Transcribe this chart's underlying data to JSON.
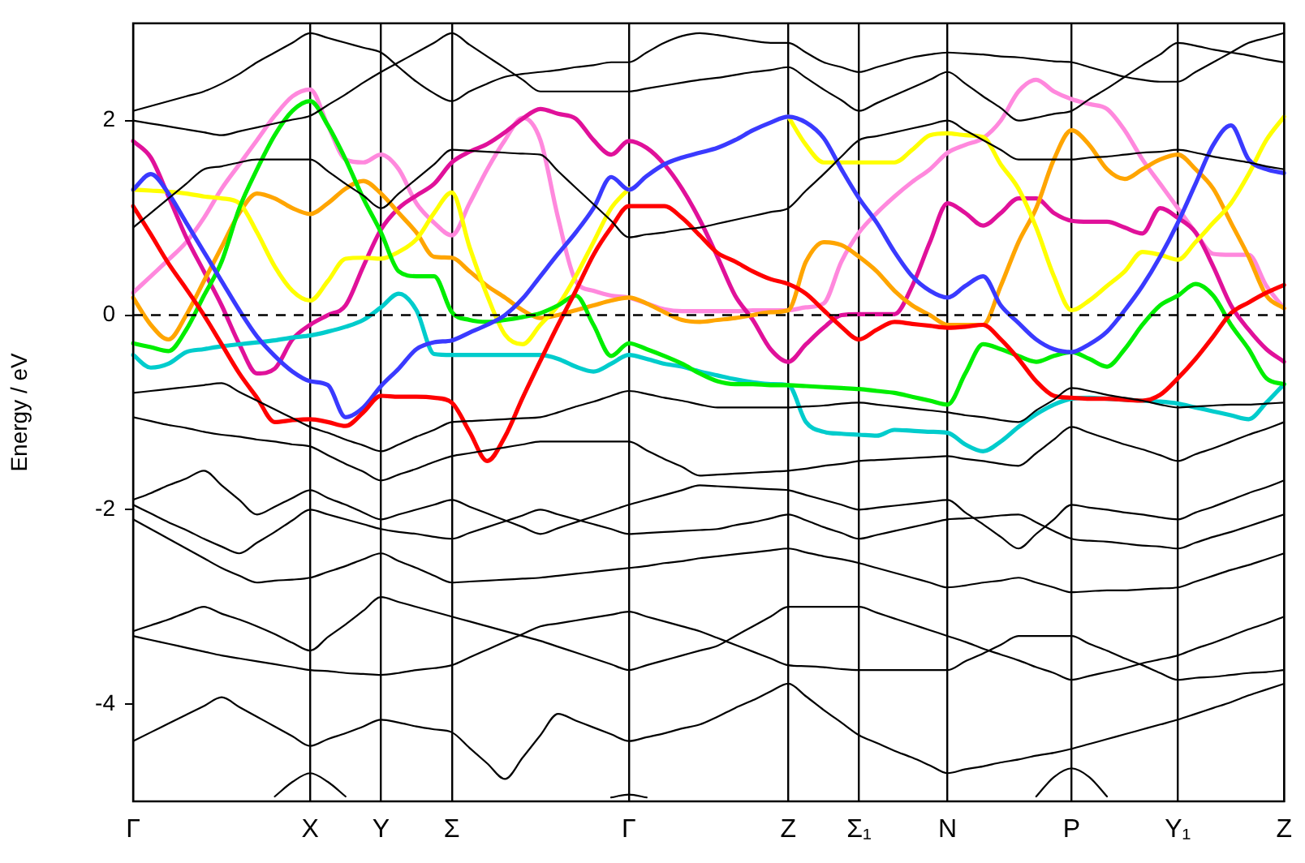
{
  "chart_data": {
    "type": "line",
    "ylabel": "Energy / eV",
    "ylim": [
      -5,
      3
    ],
    "yticks": [
      -4,
      -2,
      0,
      2
    ],
    "categories": [
      "Γ",
      null,
      null,
      null,
      null,
      null,
      null,
      null,
      null,
      null,
      "X",
      null,
      null,
      null,
      "Y",
      null,
      null,
      null,
      "Σ",
      null,
      null,
      null,
      null,
      null,
      null,
      null,
      null,
      null,
      "Γ",
      null,
      null,
      null,
      null,
      null,
      null,
      null,
      null,
      "Z",
      null,
      null,
      null,
      "Σ₁",
      null,
      null,
      null,
      null,
      "N",
      null,
      null,
      null,
      null,
      null,
      null,
      "P",
      null,
      null,
      null,
      null,
      null,
      "Y₁",
      null,
      null,
      null,
      null,
      null,
      "Z"
    ],
    "grid": "x",
    "legend": false,
    "marker": "none",
    "line_style": "solid",
    "ref_lines": [
      {
        "axis": "y",
        "value": 0,
        "color": "#000000",
        "line_style": "dashed"
      }
    ],
    "series": [
      {
        "color": "#000000",
        "values": [
          2.1,
          2.15,
          2.2,
          2.25,
          2.3,
          2.38,
          2.48,
          2.6,
          2.7,
          2.8,
          2.9,
          2.85,
          2.8,
          2.75,
          2.7,
          2.55,
          2.4,
          2.28,
          2.2,
          2.3,
          2.38,
          2.45,
          2.48,
          2.5,
          2.52,
          2.55,
          2.57,
          2.6,
          2.6,
          2.7,
          2.8,
          2.87,
          2.9,
          2.88,
          2.85,
          2.82,
          2.8,
          2.8,
          2.7,
          2.6,
          2.55,
          2.5,
          2.55,
          2.6,
          2.65,
          2.68,
          2.7,
          2.69,
          2.68,
          2.66,
          2.65,
          2.63,
          2.61,
          2.6,
          2.55,
          2.5,
          2.45,
          2.42,
          2.4,
          2.4,
          2.5,
          2.6,
          2.7,
          2.8,
          2.85,
          2.9
        ]
      },
      {
        "color": "#000000",
        "values": [
          2.0,
          1.97,
          1.94,
          1.91,
          1.88,
          1.85,
          1.89,
          1.93,
          1.97,
          2.01,
          2.05,
          2.16,
          2.27,
          2.39,
          2.5,
          2.6,
          2.7,
          2.8,
          2.9,
          2.78,
          2.66,
          2.54,
          2.42,
          2.3,
          2.3,
          2.3,
          2.3,
          2.3,
          2.3,
          2.33,
          2.36,
          2.39,
          2.42,
          2.44,
          2.47,
          2.5,
          2.52,
          2.55,
          2.44,
          2.32,
          2.21,
          2.1,
          2.18,
          2.26,
          2.34,
          2.42,
          2.5,
          2.38,
          2.25,
          2.13,
          2.0,
          2.03,
          2.07,
          2.1,
          2.22,
          2.33,
          2.45,
          2.57,
          2.68,
          2.8,
          2.77,
          2.73,
          2.7,
          2.67,
          2.63,
          2.6
        ]
      },
      {
        "color": "#000000",
        "values": [
          0.9,
          1.05,
          1.2,
          1.35,
          1.5,
          1.53,
          1.57,
          1.6,
          1.6,
          1.6,
          1.6,
          1.48,
          1.35,
          1.23,
          1.1,
          1.25,
          1.4,
          1.55,
          1.7,
          1.69,
          1.68,
          1.67,
          1.66,
          1.65,
          1.48,
          1.31,
          1.14,
          0.97,
          0.8,
          0.83,
          0.85,
          0.88,
          0.9,
          0.94,
          0.98,
          1.02,
          1.06,
          1.1,
          1.28,
          1.45,
          1.63,
          1.8,
          1.84,
          1.88,
          1.92,
          1.96,
          2.0,
          1.9,
          1.8,
          1.7,
          1.6,
          1.6,
          1.6,
          1.6,
          1.62,
          1.63,
          1.65,
          1.67,
          1.68,
          1.7,
          1.67,
          1.63,
          1.6,
          1.57,
          1.53,
          1.5
        ]
      },
      {
        "color": "#000000",
        "values": [
          -0.8,
          -0.78,
          -0.76,
          -0.74,
          -0.72,
          -0.7,
          -0.79,
          -0.88,
          -0.97,
          -1.06,
          -1.15,
          -1.21,
          -1.28,
          -1.34,
          -1.4,
          -1.33,
          -1.25,
          -1.18,
          -1.1,
          -1.09,
          -1.08,
          -1.07,
          -1.06,
          -1.05,
          -1.0,
          -0.94,
          -0.89,
          -0.83,
          -0.78,
          -0.81,
          -0.85,
          -0.88,
          -0.92,
          -0.95,
          -0.95,
          -0.95,
          -0.95,
          -0.95,
          -0.94,
          -0.93,
          -0.91,
          -0.9,
          -0.92,
          -0.94,
          -0.96,
          -0.98,
          -1.0,
          -1.03,
          -1.05,
          -1.08,
          -1.1,
          -0.98,
          -0.87,
          -0.75,
          -0.78,
          -0.82,
          -0.85,
          -0.88,
          -0.92,
          -0.95,
          -0.94,
          -0.93,
          -0.92,
          -0.92,
          -0.91,
          -0.9
        ]
      },
      {
        "color": "#000000",
        "values": [
          -1.05,
          -1.09,
          -1.13,
          -1.16,
          -1.2,
          -1.23,
          -1.25,
          -1.28,
          -1.3,
          -1.33,
          -1.35,
          -1.44,
          -1.53,
          -1.61,
          -1.7,
          -1.64,
          -1.58,
          -1.51,
          -1.45,
          -1.42,
          -1.39,
          -1.36,
          -1.33,
          -1.3,
          -1.3,
          -1.3,
          -1.3,
          -1.3,
          -1.3,
          -1.39,
          -1.48,
          -1.56,
          -1.65,
          -1.64,
          -1.63,
          -1.62,
          -1.61,
          -1.6,
          -1.58,
          -1.55,
          -1.53,
          -1.5,
          -1.49,
          -1.48,
          -1.47,
          -1.46,
          -1.45,
          -1.48,
          -1.5,
          -1.53,
          -1.55,
          -1.42,
          -1.28,
          -1.15,
          -1.21,
          -1.27,
          -1.33,
          -1.38,
          -1.44,
          -1.5,
          -1.43,
          -1.37,
          -1.3,
          -1.23,
          -1.17,
          -1.1
        ]
      },
      {
        "color": "#000000",
        "values": [
          -1.9,
          -1.83,
          -1.75,
          -1.68,
          -1.6,
          -1.75,
          -1.9,
          -2.05,
          -1.97,
          -1.88,
          -1.8,
          -1.88,
          -1.95,
          -2.03,
          -2.1,
          -2.05,
          -2.0,
          -1.95,
          -1.9,
          -1.97,
          -2.04,
          -2.11,
          -2.18,
          -2.25,
          -2.19,
          -2.13,
          -2.07,
          -2.01,
          -1.95,
          -1.9,
          -1.85,
          -1.8,
          -1.75,
          -1.76,
          -1.77,
          -1.78,
          -1.79,
          -1.8,
          -1.85,
          -1.9,
          -1.95,
          -2.0,
          -1.98,
          -1.96,
          -1.94,
          -1.92,
          -1.9,
          -2.03,
          -2.15,
          -2.28,
          -2.4,
          -2.25,
          -2.1,
          -1.95,
          -1.98,
          -2.0,
          -2.03,
          -2.05,
          -2.08,
          -2.1,
          -2.03,
          -1.97,
          -1.9,
          -1.83,
          -1.77,
          -1.7
        ]
      },
      {
        "color": "#000000",
        "values": [
          -1.95,
          -2.04,
          -2.13,
          -2.21,
          -2.3,
          -2.38,
          -2.45,
          -2.34,
          -2.23,
          -2.11,
          -2.0,
          -2.05,
          -2.1,
          -2.15,
          -2.2,
          -2.23,
          -2.25,
          -2.28,
          -2.3,
          -2.24,
          -2.18,
          -2.12,
          -2.06,
          -2.0,
          -2.05,
          -2.1,
          -2.15,
          -2.2,
          -2.25,
          -2.24,
          -2.23,
          -2.22,
          -2.21,
          -2.2,
          -2.16,
          -2.13,
          -2.09,
          -2.05,
          -2.11,
          -2.18,
          -2.24,
          -2.3,
          -2.26,
          -2.22,
          -2.18,
          -2.14,
          -2.1,
          -2.09,
          -2.08,
          -2.06,
          -2.05,
          -2.13,
          -2.22,
          -2.3,
          -2.32,
          -2.33,
          -2.35,
          -2.37,
          -2.38,
          -2.4,
          -2.34,
          -2.28,
          -2.23,
          -2.17,
          -2.11,
          -2.05
        ]
      },
      {
        "color": "#000000",
        "values": [
          -2.1,
          -2.2,
          -2.3,
          -2.4,
          -2.5,
          -2.6,
          -2.68,
          -2.75,
          -2.73,
          -2.72,
          -2.7,
          -2.64,
          -2.58,
          -2.51,
          -2.45,
          -2.53,
          -2.6,
          -2.68,
          -2.75,
          -2.74,
          -2.73,
          -2.72,
          -2.71,
          -2.7,
          -2.68,
          -2.66,
          -2.64,
          -2.62,
          -2.6,
          -2.58,
          -2.55,
          -2.53,
          -2.5,
          -2.48,
          -2.46,
          -2.44,
          -2.42,
          -2.4,
          -2.44,
          -2.48,
          -2.51,
          -2.55,
          -2.6,
          -2.65,
          -2.7,
          -2.75,
          -2.8,
          -2.78,
          -2.75,
          -2.73,
          -2.7,
          -2.75,
          -2.8,
          -2.85,
          -2.84,
          -2.83,
          -2.83,
          -2.82,
          -2.81,
          -2.8,
          -2.74,
          -2.68,
          -2.62,
          -2.57,
          -2.51,
          -2.45
        ]
      },
      {
        "color": "#000000",
        "values": [
          -3.25,
          -3.19,
          -3.13,
          -3.06,
          -3.0,
          -3.07,
          -3.13,
          -3.2,
          -3.28,
          -3.37,
          -3.45,
          -3.31,
          -3.18,
          -3.04,
          -2.9,
          -2.95,
          -3.0,
          -3.05,
          -3.1,
          -3.15,
          -3.2,
          -3.25,
          -3.3,
          -3.35,
          -3.41,
          -3.47,
          -3.53,
          -3.59,
          -3.65,
          -3.6,
          -3.55,
          -3.5,
          -3.45,
          -3.4,
          -3.3,
          -3.2,
          -3.1,
          -3.0,
          -3.0,
          -3.0,
          -3.0,
          -3.0,
          -3.06,
          -3.12,
          -3.18,
          -3.24,
          -3.3,
          -3.36,
          -3.43,
          -3.49,
          -3.55,
          -3.62,
          -3.68,
          -3.75,
          -3.71,
          -3.67,
          -3.63,
          -3.58,
          -3.54,
          -3.5,
          -3.43,
          -3.37,
          -3.3,
          -3.23,
          -3.17,
          -3.1
        ]
      },
      {
        "color": "#000000",
        "values": [
          -3.3,
          -3.34,
          -3.38,
          -3.42,
          -3.46,
          -3.5,
          -3.53,
          -3.56,
          -3.59,
          -3.62,
          -3.65,
          -3.66,
          -3.68,
          -3.69,
          -3.7,
          -3.68,
          -3.65,
          -3.63,
          -3.6,
          -3.52,
          -3.44,
          -3.36,
          -3.28,
          -3.2,
          -3.17,
          -3.14,
          -3.11,
          -3.08,
          -3.05,
          -3.1,
          -3.15,
          -3.2,
          -3.25,
          -3.32,
          -3.39,
          -3.46,
          -3.53,
          -3.6,
          -3.61,
          -3.62,
          -3.64,
          -3.65,
          -3.65,
          -3.65,
          -3.65,
          -3.65,
          -3.65,
          -3.56,
          -3.48,
          -3.39,
          -3.3,
          -3.3,
          -3.3,
          -3.3,
          -3.38,
          -3.45,
          -3.53,
          -3.6,
          -3.68,
          -3.75,
          -3.73,
          -3.72,
          -3.7,
          -3.68,
          -3.67,
          -3.65
        ]
      },
      {
        "color": "#000000",
        "values": [
          -4.38,
          -4.29,
          -4.2,
          -4.11,
          -4.02,
          -3.93,
          -4.03,
          -4.13,
          -4.23,
          -4.33,
          -4.43,
          -4.36,
          -4.3,
          -4.23,
          -4.16,
          -4.19,
          -4.23,
          -4.26,
          -4.29,
          -4.45,
          -4.61,
          -4.77,
          -4.55,
          -4.32,
          -4.1,
          -4.17,
          -4.24,
          -4.31,
          -4.38,
          -4.34,
          -4.3,
          -4.25,
          -4.21,
          -4.13,
          -4.04,
          -3.96,
          -3.87,
          -3.79,
          -3.92,
          -4.06,
          -4.19,
          -4.32,
          -4.4,
          -4.48,
          -4.55,
          -4.63,
          -4.71,
          -4.67,
          -4.64,
          -4.6,
          -4.57,
          -4.53,
          -4.5,
          -4.46,
          -4.41,
          -4.36,
          -4.31,
          -4.26,
          -4.21,
          -4.16,
          -4.1,
          -4.04,
          -3.98,
          -3.91,
          -3.85,
          -3.79
        ]
      },
      {
        "color": "#000000",
        "values": [
          null,
          null,
          null,
          null,
          null,
          null,
          null,
          null,
          -4.95,
          -4.8,
          -4.71,
          -4.8,
          -4.95,
          null,
          null,
          null,
          null,
          null,
          null,
          null,
          null,
          null,
          null,
          null,
          null,
          null,
          null,
          -4.96,
          -4.93,
          -4.96,
          null,
          null,
          null,
          null,
          null,
          null,
          null,
          null,
          null,
          null,
          null,
          null,
          null,
          null,
          null,
          null,
          null,
          null,
          null,
          null,
          null,
          -4.95,
          -4.75,
          -4.66,
          -4.75,
          -4.95,
          null,
          null,
          null,
          null,
          null,
          null,
          null,
          null,
          null,
          null
        ]
      },
      {
        "color": "#ff0000",
        "values": [
          1.12,
          0.83,
          0.53,
          0.27,
          0.0,
          -0.3,
          -0.6,
          -0.85,
          -1.1,
          -1.08,
          -1.07,
          -1.1,
          -1.14,
          -1.0,
          -0.83,
          -0.84,
          -0.84,
          -0.85,
          -0.9,
          -1.2,
          -1.5,
          -1.25,
          -0.85,
          -0.47,
          -0.1,
          0.25,
          0.62,
          0.9,
          1.12,
          1.12,
          1.12,
          1.0,
          0.82,
          0.64,
          0.55,
          0.45,
          0.37,
          0.32,
          0.22,
          0.05,
          -0.12,
          -0.25,
          -0.15,
          -0.07,
          -0.09,
          -0.11,
          -0.13,
          -0.12,
          -0.1,
          -0.25,
          -0.45,
          -0.68,
          -0.83,
          -0.85,
          -0.86,
          -0.86,
          -0.87,
          -0.88,
          -0.82,
          -0.65,
          -0.45,
          -0.22,
          0.02,
          0.13,
          0.23,
          0.31
        ]
      },
      {
        "color": "#3a3aff",
        "values": [
          1.29,
          1.45,
          1.25,
          0.95,
          0.65,
          0.35,
          0.05,
          -0.22,
          -0.42,
          -0.58,
          -0.68,
          -0.72,
          -1.05,
          -0.95,
          -0.73,
          -0.55,
          -0.35,
          -0.28,
          -0.26,
          -0.18,
          -0.1,
          0.0,
          0.17,
          0.4,
          0.63,
          0.85,
          1.1,
          1.42,
          1.29,
          1.43,
          1.55,
          1.62,
          1.67,
          1.72,
          1.8,
          1.9,
          1.98,
          2.04,
          1.98,
          1.82,
          1.5,
          1.2,
          0.95,
          0.65,
          0.4,
          0.25,
          0.18,
          0.3,
          0.4,
          0.1,
          -0.08,
          -0.25,
          -0.35,
          -0.38,
          -0.3,
          -0.17,
          0.05,
          0.3,
          0.6,
          0.95,
          1.35,
          1.75,
          1.95,
          1.6,
          1.5,
          1.46
        ]
      },
      {
        "color": "#00ee00",
        "values": [
          -0.29,
          -0.33,
          -0.37,
          -0.15,
          0.2,
          0.55,
          1.1,
          1.5,
          1.85,
          2.1,
          2.2,
          1.95,
          1.6,
          1.2,
          0.85,
          0.45,
          0.4,
          0.4,
          0.03,
          -0.05,
          -0.07,
          -0.05,
          -0.02,
          0.02,
          0.1,
          0.2,
          -0.1,
          -0.42,
          -0.29,
          -0.35,
          -0.42,
          -0.5,
          -0.6,
          -0.68,
          -0.71,
          -0.71,
          -0.72,
          -0.72,
          -0.73,
          -0.74,
          -0.75,
          -0.76,
          -0.78,
          -0.8,
          -0.84,
          -0.88,
          -0.92,
          -0.6,
          -0.3,
          -0.35,
          -0.42,
          -0.48,
          -0.42,
          -0.38,
          -0.45,
          -0.53,
          -0.35,
          -0.1,
          0.1,
          0.2,
          0.32,
          0.2,
          -0.1,
          -0.35,
          -0.65,
          -0.71
        ]
      },
      {
        "color": "#00cccc",
        "values": [
          -0.41,
          -0.54,
          -0.5,
          -0.38,
          -0.35,
          -0.32,
          -0.3,
          -0.28,
          -0.26,
          -0.23,
          -0.21,
          -0.17,
          -0.12,
          -0.05,
          0.08,
          0.22,
          0.05,
          -0.4,
          -0.41,
          -0.41,
          -0.41,
          -0.41,
          -0.41,
          -0.41,
          -0.45,
          -0.53,
          -0.58,
          -0.5,
          -0.41,
          -0.45,
          -0.5,
          -0.53,
          -0.58,
          -0.62,
          -0.66,
          -0.69,
          -0.71,
          -0.72,
          -1.1,
          -1.2,
          -1.22,
          -1.23,
          -1.24,
          -1.18,
          -1.19,
          -1.2,
          -1.21,
          -1.33,
          -1.4,
          -1.3,
          -1.15,
          -1.02,
          -0.92,
          -0.86,
          -0.85,
          -0.86,
          -0.87,
          -0.88,
          -0.89,
          -0.91,
          -0.95,
          -0.99,
          -1.03,
          -1.07,
          -0.9,
          -0.71
        ]
      },
      {
        "color": "#ffff00",
        "values": [
          1.29,
          1.28,
          1.27,
          1.25,
          1.22,
          1.2,
          1.15,
          0.85,
          0.5,
          0.25,
          0.15,
          0.35,
          0.58,
          0.59,
          0.58,
          0.65,
          0.78,
          1.05,
          1.26,
          0.7,
          0.2,
          -0.2,
          -0.3,
          -0.1,
          0.1,
          0.4,
          0.75,
          1.1,
          1.3,
          null,
          null,
          null,
          null,
          null,
          null,
          null,
          null,
          2.04,
          1.75,
          1.57,
          1.57,
          1.57,
          1.57,
          1.57,
          1.7,
          1.85,
          1.87,
          1.85,
          1.83,
          1.55,
          1.3,
          0.9,
          0.4,
          0.05,
          0.15,
          0.3,
          0.45,
          0.65,
          0.62,
          0.57,
          0.75,
          0.95,
          1.15,
          1.45,
          1.8,
          2.04
        ]
      },
      {
        "color": "#ffa500",
        "values": [
          0.18,
          -0.1,
          -0.25,
          0.0,
          0.35,
          0.7,
          1.05,
          1.25,
          1.2,
          1.1,
          1.04,
          1.15,
          1.3,
          1.38,
          1.25,
          1.05,
          0.85,
          0.6,
          0.59,
          0.45,
          0.3,
          0.18,
          0.05,
          -0.03,
          0.0,
          0.05,
          0.1,
          0.15,
          0.18,
          0.12,
          0.03,
          -0.05,
          -0.07,
          -0.05,
          -0.03,
          0.0,
          0.03,
          0.05,
          0.55,
          0.75,
          0.72,
          0.6,
          0.45,
          0.25,
          0.1,
          0.0,
          -0.1,
          -0.1,
          -0.1,
          0.3,
          0.75,
          1.1,
          1.6,
          1.9,
          1.75,
          1.5,
          1.4,
          1.5,
          1.6,
          1.65,
          1.5,
          1.3,
          0.95,
          0.6,
          0.2,
          0.07
        ]
      },
      {
        "color": "#e0119a",
        "values": [
          1.79,
          1.62,
          1.22,
          0.8,
          0.45,
          0.1,
          -0.3,
          -0.6,
          -0.55,
          -0.25,
          -0.1,
          0.0,
          0.1,
          0.5,
          0.88,
          1.1,
          1.23,
          1.35,
          1.57,
          1.68,
          1.76,
          1.88,
          2.02,
          2.12,
          2.07,
          2.02,
          1.8,
          1.65,
          1.79,
          1.72,
          1.55,
          1.3,
          0.98,
          0.6,
          0.2,
          -0.05,
          -0.35,
          -0.48,
          -0.3,
          -0.13,
          0.0,
          0.01,
          0.01,
          0.01,
          0.3,
          0.75,
          1.15,
          1.05,
          0.92,
          1.05,
          1.2,
          1.2,
          1.05,
          0.97,
          0.96,
          0.96,
          0.9,
          0.84,
          1.1,
          1.0,
          0.85,
          0.5,
          0.1,
          -0.15,
          -0.35,
          -0.48
        ]
      },
      {
        "color": "#ff88dd",
        "values": [
          0.23,
          0.4,
          0.57,
          0.75,
          1.0,
          1.3,
          1.55,
          1.8,
          2.05,
          2.25,
          2.32,
          1.95,
          1.6,
          1.57,
          1.65,
          1.5,
          1.15,
          0.95,
          0.82,
          1.15,
          1.5,
          1.8,
          2.03,
          1.8,
          1.0,
          0.35,
          0.25,
          0.2,
          0.18,
          0.12,
          0.06,
          0.04,
          0.04,
          0.04,
          0.04,
          0.05,
          0.05,
          0.05,
          0.08,
          0.12,
          0.55,
          0.85,
          1.05,
          1.22,
          1.37,
          1.5,
          1.67,
          1.75,
          1.82,
          2.0,
          2.3,
          2.42,
          2.3,
          2.22,
          2.17,
          2.12,
          1.9,
          1.6,
          1.35,
          1.1,
          0.85,
          0.63,
          0.62,
          0.62,
          0.3,
          0.07
        ]
      }
    ]
  }
}
